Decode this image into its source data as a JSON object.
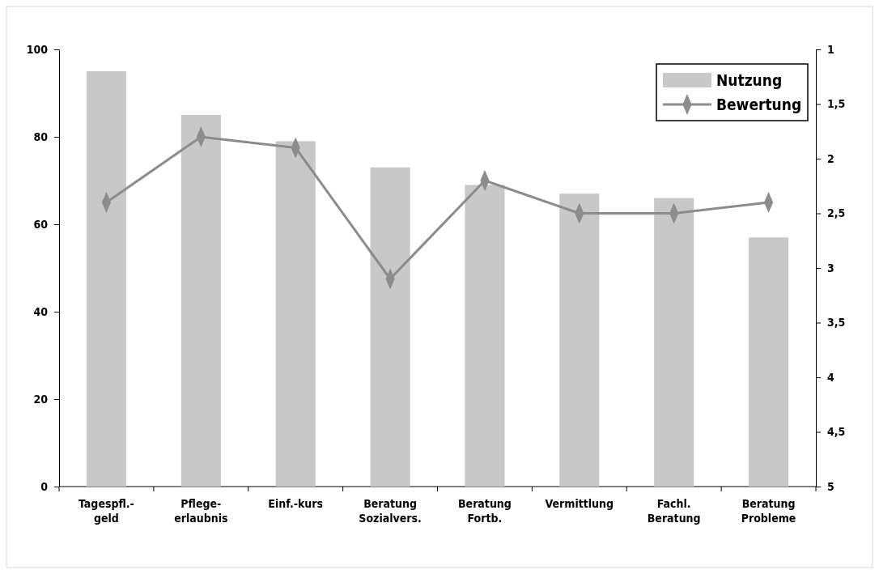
{
  "chart_data": {
    "type": "bar",
    "categories": [
      "Tagespfl.-\ngeld",
      "Pflege-\nerlaubnis",
      "Einf.-kurs",
      "Beratung\nSozialvers.",
      "Beratung\nFortb.",
      "Vermittlung",
      "Fachl.\nBeratung",
      "Beratung\nProbleme"
    ],
    "series": [
      {
        "name": "Nutzung",
        "color": "#c8c8c8",
        "values": [
          95,
          85,
          79,
          73,
          69,
          67,
          66,
          57
        ]
      },
      {
        "name": "Bewertung",
        "type": "line",
        "axis": "y2",
        "color": "#8c8c8c",
        "marker": "diamond",
        "values": [
          2.4,
          1.8,
          1.9,
          3.1,
          2.2,
          2.5,
          2.5,
          2.4
        ]
      }
    ],
    "ylim": [
      0,
      100
    ],
    "yticks": [
      0,
      20,
      40,
      60,
      80,
      100
    ],
    "y2lim": [
      5,
      1
    ],
    "y2ticks": [
      {
        "value": 1,
        "label": "1"
      },
      {
        "value": 1.5,
        "label": "1,5"
      },
      {
        "value": 2,
        "label": "2"
      },
      {
        "value": 2.5,
        "label": "2,5"
      },
      {
        "value": 3,
        "label": "3"
      },
      {
        "value": 3.5,
        "label": "3,5"
      },
      {
        "value": 4,
        "label": "4"
      },
      {
        "value": 4.5,
        "label": "4,5"
      },
      {
        "value": 5,
        "label": "5"
      }
    ],
    "legend": "top right",
    "grid": false
  }
}
